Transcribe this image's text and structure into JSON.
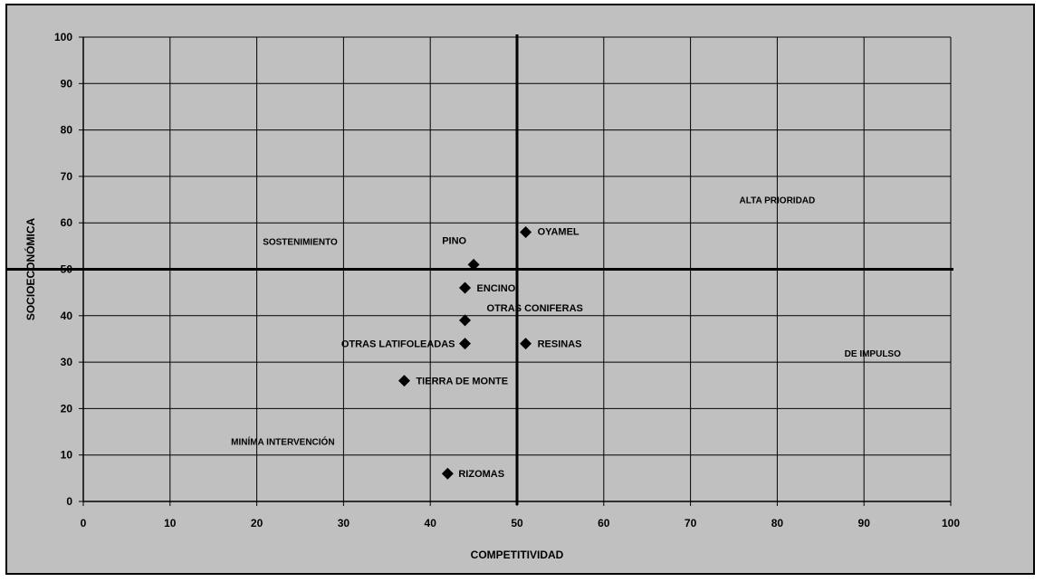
{
  "chart_data": {
    "type": "scatter",
    "title": "",
    "xlabel": "COMPETITIVIDAD",
    "ylabel": "SOCIOECONÓMICA",
    "xlim": [
      0,
      100
    ],
    "ylim": [
      0,
      100
    ],
    "x_ticks": [
      0,
      10,
      20,
      30,
      40,
      50,
      60,
      70,
      80,
      90,
      100
    ],
    "y_ticks": [
      0,
      10,
      20,
      30,
      40,
      50,
      60,
      70,
      80,
      90,
      100
    ],
    "grid": true,
    "legend": "none",
    "dividers": {
      "x": 50,
      "y": 50
    },
    "points": [
      {
        "label": "OYAMEL",
        "x": 51,
        "y": 58
      },
      {
        "label": "PINO",
        "x": 45,
        "y": 51
      },
      {
        "label": "ENCINO",
        "x": 44,
        "y": 46
      },
      {
        "label": "OTRAS CONIFERAS",
        "x": 44,
        "y": 39
      },
      {
        "label": "OTRAS LATIFOLEADAS",
        "x": 44,
        "y": 34
      },
      {
        "label": "RESINAS",
        "x": 51,
        "y": 34
      },
      {
        "label": "TIERRA DE MONTE",
        "x": 37,
        "y": 26
      },
      {
        "label": "RIZOMAS",
        "x": 42,
        "y": 6
      }
    ],
    "quadrant_labels": [
      {
        "text": "ALTA PRIORIDAD",
        "x": 80,
        "y": 65
      },
      {
        "text": "SOSTENIMIENTO",
        "x": 25,
        "y": 56
      },
      {
        "text": "DE IMPULSO",
        "x": 91,
        "y": 32
      },
      {
        "text": "MINÍMA INTERVENCIÓN",
        "x": 23,
        "y": 13
      }
    ]
  }
}
